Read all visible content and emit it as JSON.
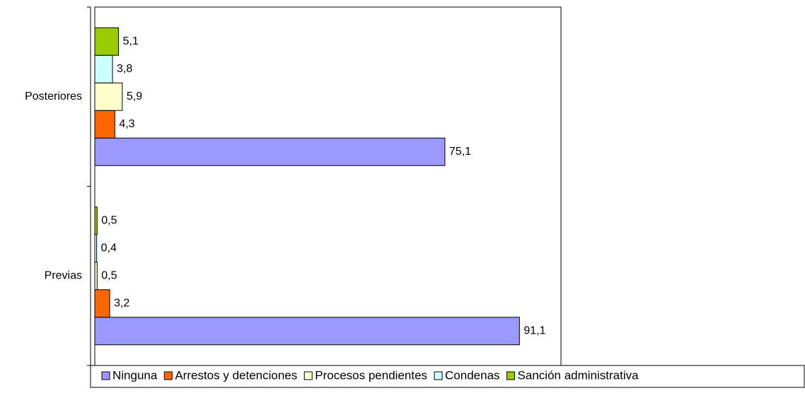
{
  "chart_data": {
    "type": "bar",
    "orientation": "horizontal",
    "categories": [
      "Posteriores",
      "Previas"
    ],
    "series": [
      {
        "name": "Ninguna",
        "color": "#9999ff",
        "values": [
          75.1,
          91.1
        ],
        "value_labels": [
          "75,1",
          "91,1"
        ]
      },
      {
        "name": "Arrestos y detenciones",
        "color": "#ff6600",
        "values": [
          4.3,
          3.2
        ],
        "value_labels": [
          "4,3",
          "3,2"
        ]
      },
      {
        "name": "Procesos pendientes",
        "color": "#ffffcc",
        "values": [
          5.9,
          0.5
        ],
        "value_labels": [
          "5,9",
          "0,5"
        ]
      },
      {
        "name": "Condenas",
        "color": "#ccffff",
        "values": [
          3.8,
          0.4
        ],
        "value_labels": [
          "3,8",
          "0,4"
        ]
      },
      {
        "name": "Sanción administrativa",
        "color": "#99cc00",
        "values": [
          5.1,
          0.5
        ],
        "value_labels": [
          "5,1",
          "0,5"
        ]
      }
    ],
    "xlim": [
      0,
      100
    ],
    "legend": "bottom"
  }
}
